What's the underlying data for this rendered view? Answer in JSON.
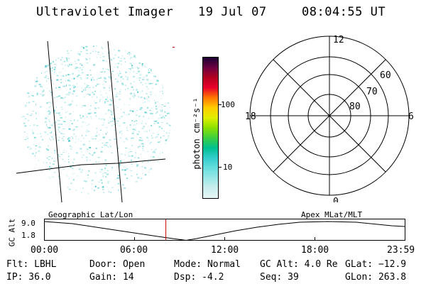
{
  "header": {
    "title": "Ultraviolet Imager",
    "date": "19 Jul 07",
    "time": "08:04:55 UT"
  },
  "colorbar": {
    "label": "photon cm⁻²s⁻¹",
    "tick_100": "100",
    "tick_10": "10",
    "colors": [
      "#1a0033",
      "#6b0040",
      "#b3001f",
      "#e8002a",
      "#ff7700",
      "#ffcc00",
      "#e0f000",
      "#8ae000",
      "#3ecf40",
      "#00c090",
      "#33cccc",
      "#66dddd",
      "#99e6e6",
      "#cceeee",
      "#e6f6f6"
    ]
  },
  "polar": {
    "label_12": "12",
    "label_0": "0",
    "label_18": "18",
    "label_6": "6",
    "lat_60": "60",
    "lat_70": "70",
    "lat_80": "80"
  },
  "altitude_strip": {
    "axis_label": "GC Alt",
    "top_value": "9.0",
    "bottom_value": "1.8",
    "left_title": "Geographic Lat/Lon",
    "right_title": "Apex  MLat/MLT",
    "time_ticks": [
      "00:00",
      "06:00",
      "12:00",
      "18:00",
      "23:59"
    ],
    "current_time_fraction": 0.3368
  },
  "footer": {
    "flt": "Flt: LBHL",
    "ip": "IP: 36.0",
    "door": "Door: Open",
    "gain": "Gain: 14",
    "mode": "Mode: Normal",
    "dsp": "Dsp:    -4.2",
    "gc_alt": "GC Alt: 4.0 Re",
    "seq": "Seq: 39",
    "glat": "GLat: −12.9",
    "glon": "GLon: 263.8"
  },
  "colors": {
    "speckle": "#7fd8d8",
    "speckle_dark": "#28b8c0",
    "marker": "#cc0000",
    "line": "#000000"
  }
}
